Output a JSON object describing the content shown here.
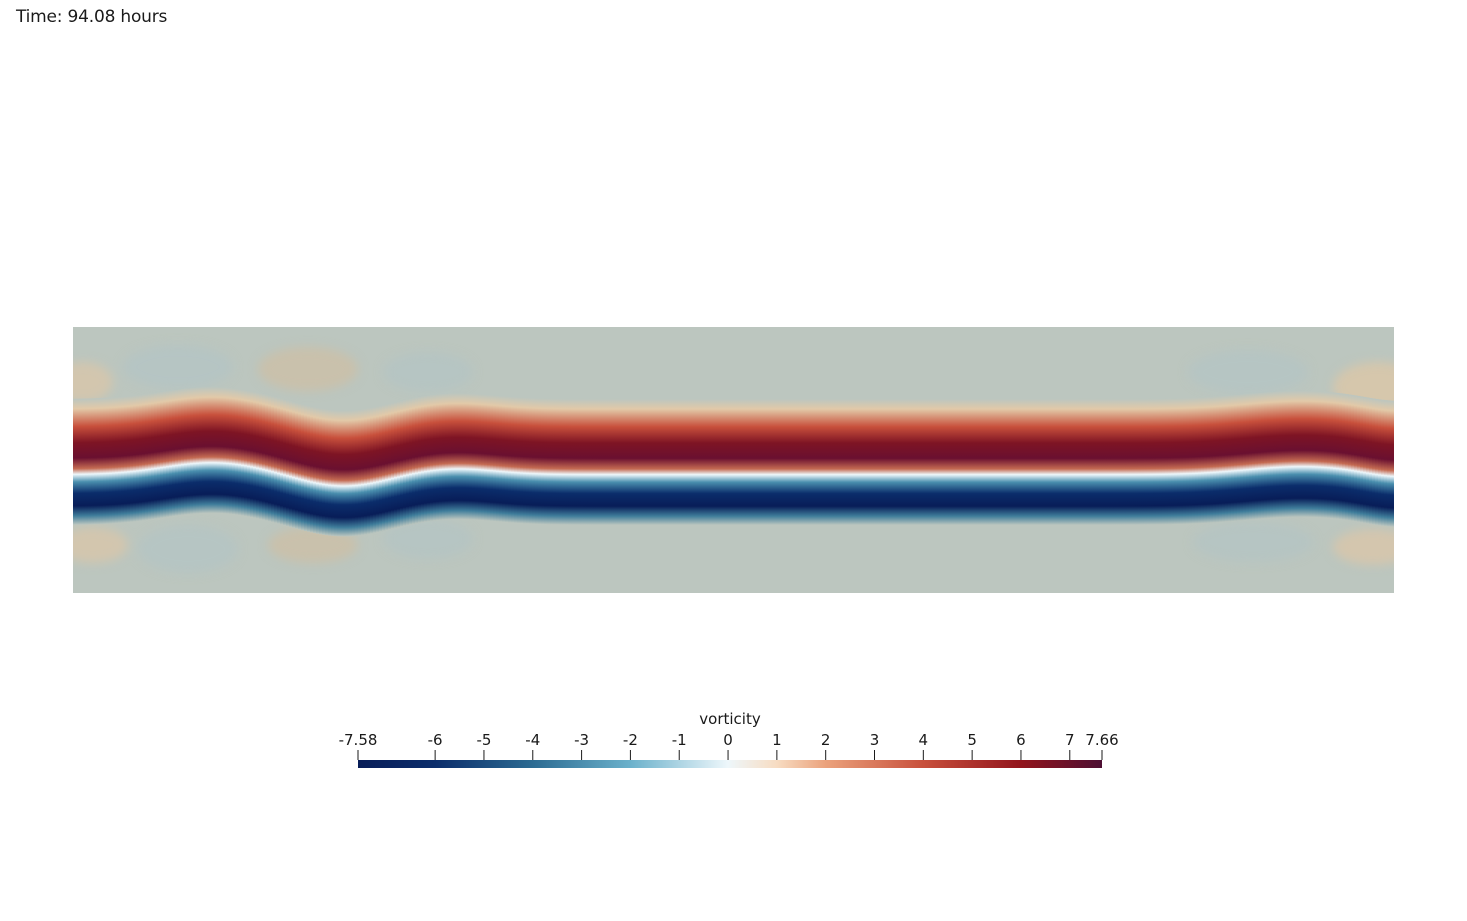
{
  "annotation": {
    "time_label": "Time: 94.08 hours"
  },
  "chart_data": {
    "type": "heatmap",
    "title": "",
    "field_name": "vorticity",
    "colorbar": {
      "title": "vorticity",
      "range": [
        -7.58,
        7.66
      ],
      "ticks": [
        -6,
        -5,
        -4,
        -3,
        -2,
        -1,
        0,
        1,
        2,
        3,
        4,
        5,
        6,
        7
      ],
      "tick_labels": [
        "-6",
        "-5",
        "-4",
        "-3",
        "-2",
        "-1",
        "0",
        "1",
        "2",
        "3",
        "4",
        "5",
        "6",
        "7"
      ],
      "min_label": "-7.58",
      "max_label": "7.66",
      "colormap": [
        {
          "value": -7.58,
          "color": "#081d58"
        },
        {
          "value": -6,
          "color": "#0b2d6b"
        },
        {
          "value": -4,
          "color": "#2c6b92"
        },
        {
          "value": -2,
          "color": "#6bb1cb"
        },
        {
          "value": 0,
          "color": "#eef7fb"
        },
        {
          "value": 1,
          "color": "#f7dcc2"
        },
        {
          "value": 2,
          "color": "#eba27c"
        },
        {
          "value": 4,
          "color": "#c8503c"
        },
        {
          "value": 6,
          "color": "#92141c"
        },
        {
          "value": 7.66,
          "color": "#4d0f33"
        }
      ]
    },
    "background_color": "#bcc6bf",
    "jet_structure": {
      "positive_band": "upper",
      "negative_band": "lower",
      "meander": "wavy near left and right edges, nearly flat in middle"
    }
  }
}
